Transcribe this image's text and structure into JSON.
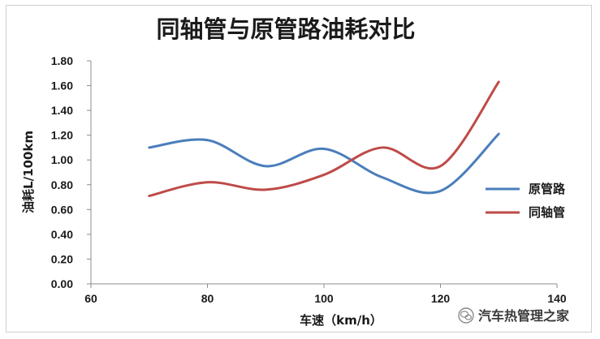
{
  "chart_data": {
    "type": "line",
    "title": "同轴管与原管路油耗对比",
    "xlabel": "车速（km/h）",
    "ylabel": "油耗L/100km",
    "x": [
      70,
      80,
      90,
      100,
      110,
      120,
      130
    ],
    "xlim": [
      60,
      140
    ],
    "ylim": [
      0,
      1.8
    ],
    "xticks": [
      "60",
      "80",
      "100",
      "120",
      "140"
    ],
    "yticks": [
      "0.00",
      "0.20",
      "0.40",
      "0.60",
      "0.80",
      "1.00",
      "1.20",
      "1.40",
      "1.60",
      "1.80"
    ],
    "grid": false,
    "smooth": true,
    "legend": "right",
    "series": [
      {
        "name": "原管路",
        "color": "#4A7EBB",
        "values": [
          1.1,
          1.16,
          0.95,
          1.09,
          0.86,
          0.75,
          1.21
        ]
      },
      {
        "name": "同轴管",
        "color": "#BE4B48",
        "values": [
          0.71,
          0.82,
          0.76,
          0.88,
          1.1,
          0.95,
          1.63
        ]
      }
    ]
  },
  "watermark": {
    "text": "汽车热管理之家",
    "icon": "wechat-icon"
  }
}
